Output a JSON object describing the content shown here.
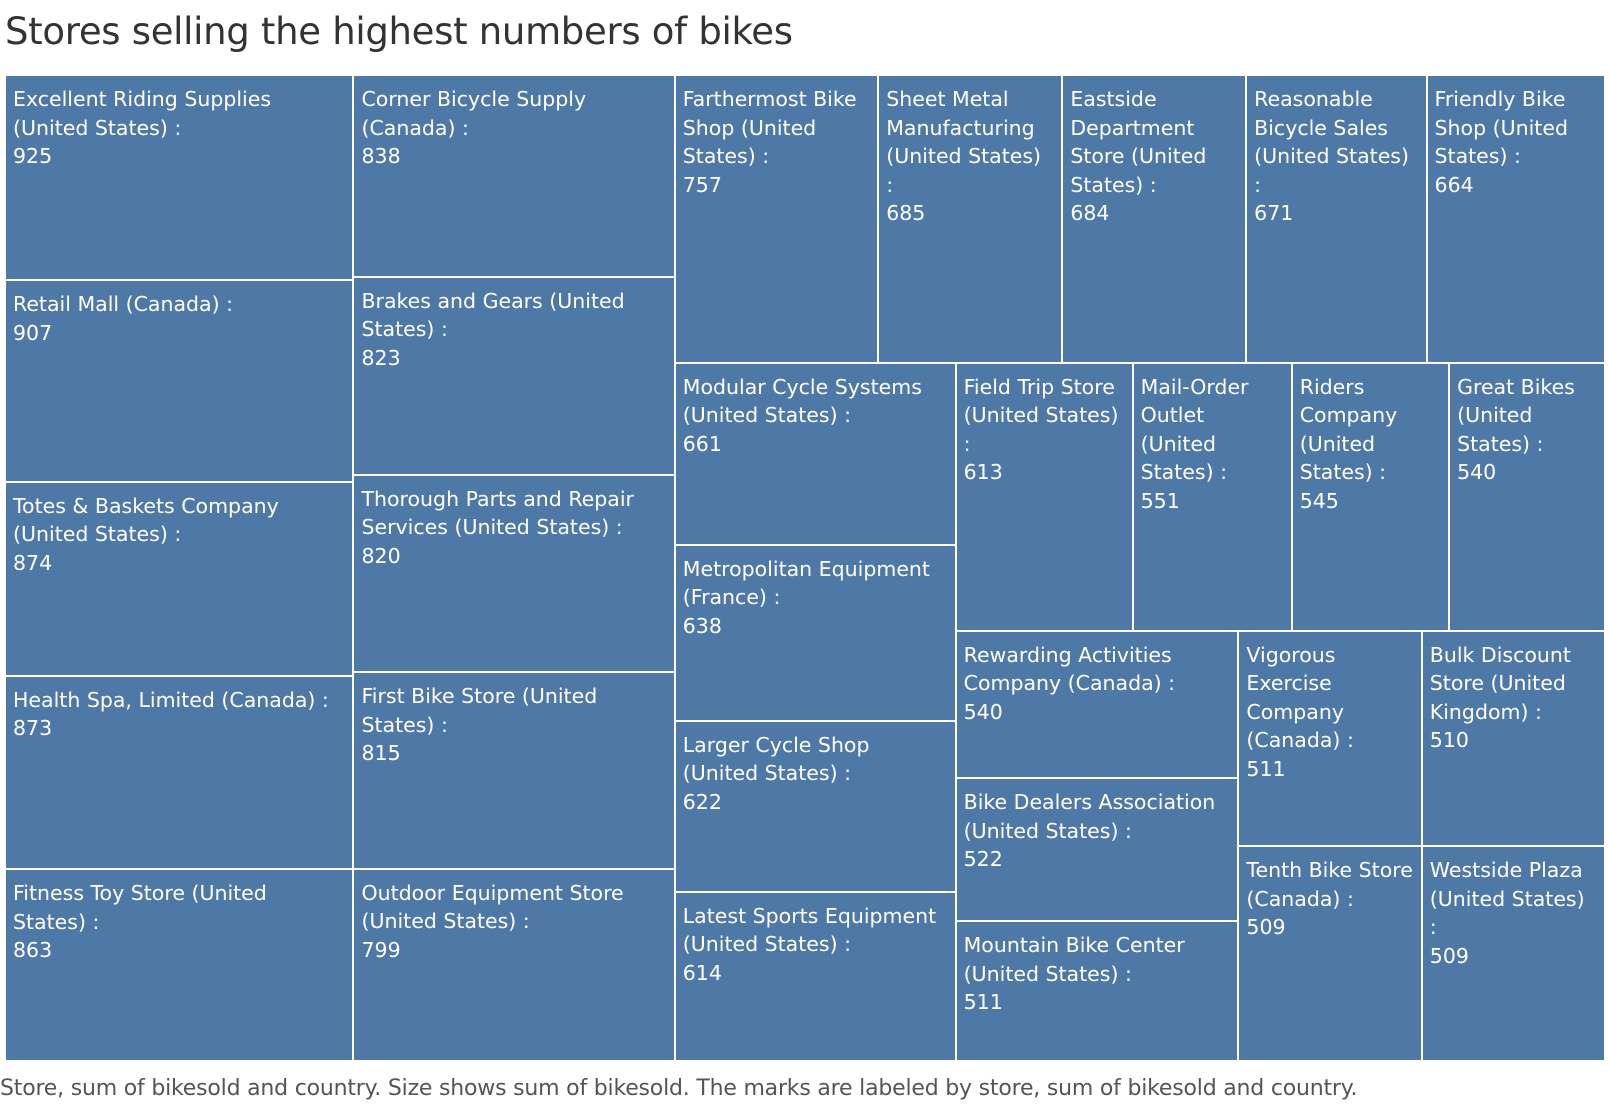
{
  "chart_data": {
    "type": "treemap",
    "title": "Stores selling the highest numbers of bikes",
    "caption": "Store, sum of bikesold and country.  Size shows sum of bikesold.  The marks are labeled by store, sum of bikesold and country.",
    "color": "#4e79a7",
    "items": [
      {
        "label": "Excellent Riding Supplies (United States) :",
        "value": 925
      },
      {
        "label": "Retail Mall (Canada) :",
        "value": 907
      },
      {
        "label": "Totes & Baskets Company (United States) :",
        "value": 874
      },
      {
        "label": "Health Spa, Limited (Canada) :",
        "value": 873
      },
      {
        "label": "Fitness Toy Store (United States) :",
        "value": 863
      },
      {
        "label": "Corner Bicycle Supply (Canada) :",
        "value": 838
      },
      {
        "label": "Brakes and Gears (United States) :",
        "value": 823
      },
      {
        "label": "Thorough Parts and Repair Services (United States) :",
        "value": 820
      },
      {
        "label": "First Bike Store (United States) :",
        "value": 815
      },
      {
        "label": "Outdoor Equipment Store (United States) :",
        "value": 799
      },
      {
        "label": "Farthermost Bike Shop (United States) :",
        "value": 757
      },
      {
        "label": "Sheet Metal Manufacturing (United States) :",
        "value": 685
      },
      {
        "label": "Eastside Department Store (United States) :",
        "value": 684
      },
      {
        "label": "Reasonable Bicycle Sales (United States) :",
        "value": 671
      },
      {
        "label": "Friendly Bike Shop (United States) :",
        "value": 664
      },
      {
        "label": "Modular Cycle Systems (United States) :",
        "value": 661
      },
      {
        "label": "Metropolitan Equipment (France) :",
        "value": 638
      },
      {
        "label": "Larger Cycle Shop (United States) :",
        "value": 622
      },
      {
        "label": "Latest Sports Equipment (United States) :",
        "value": 614
      },
      {
        "label": "Field Trip Store (United States) :",
        "value": 613
      },
      {
        "label": "Mail-Order Outlet (United States) :",
        "value": 551
      },
      {
        "label": "Riders Company (United States) :",
        "value": 545
      },
      {
        "label": "Great Bikes (United States) :",
        "value": 540
      },
      {
        "label": "Rewarding Activities Company (Canada) :",
        "value": 540
      },
      {
        "label": "Bike Dealers Association (United States) :",
        "value": 522
      },
      {
        "label": "Mountain Bike Center (United States) :",
        "value": 511
      },
      {
        "label": "Vigorous Exercise Company (Canada) :",
        "value": 511
      },
      {
        "label": "Bulk Discount Store (United Kingdom) :",
        "value": 510
      },
      {
        "label": "Tenth Bike Store (Canada) :",
        "value": 509
      },
      {
        "label": "Westside Plaza (United States) :",
        "value": 509
      }
    ]
  }
}
